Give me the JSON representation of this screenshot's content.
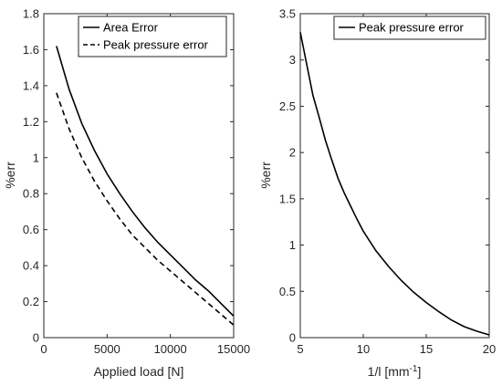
{
  "chart_data": [
    {
      "type": "line",
      "xlabel": "Applied load [N]",
      "ylabel": "%err",
      "xlim": [
        0,
        15000
      ],
      "ylim": [
        0,
        1.8
      ],
      "xticks": [
        0,
        5000,
        10000,
        15000
      ],
      "xtick_labels": [
        "0",
        "5000",
        "10000",
        "15000"
      ],
      "yticks": [
        0,
        0.2,
        0.4,
        0.6,
        0.8,
        1,
        1.2,
        1.4,
        1.6,
        1.8
      ],
      "ytick_labels": [
        "0",
        "0.2",
        "0.4",
        "0.6",
        "0.8",
        "1",
        "1.2",
        "1.4",
        "1.6",
        "1.8"
      ],
      "legend_position": "top-left",
      "series": [
        {
          "name": "Area Error",
          "style": "solid",
          "color": "#000000",
          "x": [
            1000,
            2000,
            3000,
            4000,
            5000,
            6000,
            7000,
            8000,
            9000,
            10000,
            11000,
            12000,
            13000,
            14000,
            15000
          ],
          "y": [
            1.62,
            1.38,
            1.19,
            1.04,
            0.91,
            0.8,
            0.7,
            0.61,
            0.53,
            0.46,
            0.39,
            0.32,
            0.26,
            0.19,
            0.12
          ]
        },
        {
          "name": "Peak pressure error",
          "style": "dashed",
          "color": "#000000",
          "x": [
            1000,
            2000,
            3000,
            4000,
            5000,
            6000,
            7000,
            8000,
            9000,
            10000,
            11000,
            12000,
            13000,
            14000,
            15000
          ],
          "y": [
            1.36,
            1.16,
            1.0,
            0.87,
            0.76,
            0.66,
            0.57,
            0.5,
            0.43,
            0.37,
            0.31,
            0.25,
            0.19,
            0.13,
            0.07
          ]
        }
      ]
    },
    {
      "type": "line",
      "xlabel": "1/l [mm",
      "xlabel_sup": "-1",
      "xlabel_end": "]",
      "ylabel": "%err",
      "xlim": [
        5,
        20
      ],
      "ylim": [
        0,
        3.5
      ],
      "xticks": [
        5,
        10,
        15,
        20
      ],
      "xtick_labels": [
        "5",
        "10",
        "15",
        "20"
      ],
      "yticks": [
        0,
        0.5,
        1,
        1.5,
        2,
        2.5,
        3,
        3.5
      ],
      "ytick_labels": [
        "0",
        "0.5",
        "1",
        "1.5",
        "2",
        "2.5",
        "3",
        "3.5"
      ],
      "legend_position": "top-right",
      "series": [
        {
          "name": "Peak pressure error",
          "style": "solid",
          "color": "#000000",
          "x": [
            5,
            5.5,
            6,
            6.5,
            7,
            7.5,
            8,
            8.5,
            9,
            9.5,
            10,
            11,
            12,
            13,
            14,
            15,
            16,
            17,
            18,
            19,
            20
          ],
          "y": [
            3.3,
            2.96,
            2.62,
            2.38,
            2.13,
            1.92,
            1.72,
            1.56,
            1.42,
            1.28,
            1.15,
            0.94,
            0.77,
            0.62,
            0.49,
            0.38,
            0.28,
            0.19,
            0.12,
            0.07,
            0.03
          ]
        }
      ]
    }
  ]
}
